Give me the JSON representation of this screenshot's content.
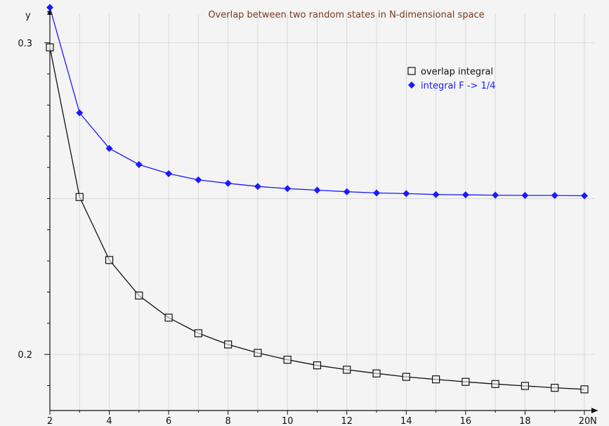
{
  "chart_data": {
    "type": "line",
    "title": "Overlap between two random states in N-dimensional space",
    "xlabel": "N",
    "ylabel": "y",
    "xlim": [
      2,
      20.5
    ],
    "ylim": [
      0.182,
      0.311
    ],
    "x_ticks": [
      2,
      4,
      6,
      8,
      10,
      12,
      14,
      16,
      18,
      20
    ],
    "y_ticks": [
      0.2,
      0.3
    ],
    "y_tick_labels": [
      "0.2",
      "0.3"
    ],
    "grid": true,
    "legend_position": "top-right",
    "x": [
      2,
      3,
      4,
      5,
      6,
      7,
      8,
      9,
      10,
      11,
      12,
      13,
      14,
      15,
      16,
      17,
      18,
      19,
      20
    ],
    "series": [
      {
        "name": "overlap integral",
        "color": "#111111",
        "marker": "open-square",
        "values": [
          0.2985,
          0.2505,
          0.2303,
          0.2189,
          0.2118,
          0.2068,
          0.2032,
          0.2005,
          0.1983,
          0.1965,
          0.1951,
          0.1939,
          0.1928,
          0.192,
          0.1912,
          0.1905,
          0.1899,
          0.1893,
          0.1888
        ]
      },
      {
        "name": "integral F -> 1/4",
        "color": "#1a1aff",
        "marker": "filled-diamond",
        "values": [
          0.3113,
          0.2775,
          0.2661,
          0.2609,
          0.258,
          0.256,
          0.2549,
          0.2539,
          0.2532,
          0.2527,
          0.2522,
          0.2518,
          0.2516,
          0.2513,
          0.2512,
          0.2511,
          0.251,
          0.251,
          0.2509
        ]
      }
    ]
  }
}
